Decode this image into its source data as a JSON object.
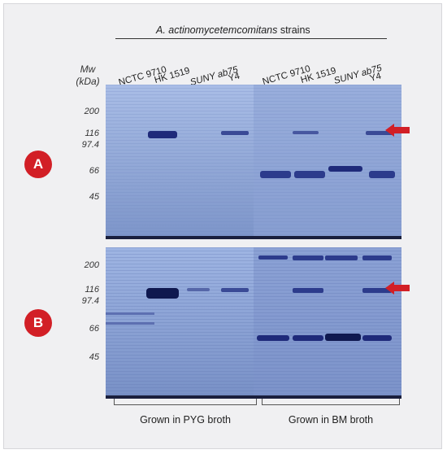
{
  "figure": {
    "header_italic": "A. actinomycetemcomitans",
    "header_rest": " strains",
    "mw_label_line1": "Mw",
    "mw_label_line2": "(kDa)",
    "lanes": [
      {
        "label": "NCTC 9710",
        "italic": false
      },
      {
        "label": "HK 1519",
        "italic": false
      },
      {
        "label": "SUNY ab75",
        "italic": true
      },
      {
        "label": "Y4",
        "italic": false
      },
      {
        "label": "NCTC 9710",
        "italic": false
      },
      {
        "label": "HK 1519",
        "italic": false
      },
      {
        "label": "SUNY ab75",
        "italic": true
      },
      {
        "label": "Y4",
        "italic": false
      }
    ],
    "panel_a": {
      "badge": "A",
      "mw_ticks": [
        "200",
        "116",
        "97.4",
        "66",
        "45"
      ]
    },
    "panel_b": {
      "badge": "B",
      "mw_ticks": [
        "200",
        "116",
        "97.4",
        "66",
        "45"
      ]
    },
    "groups": {
      "pyg": "Grown in PYG broth",
      "bm": "Grown in BM broth"
    },
    "colors": {
      "gel_background": "#8ea5d3",
      "band": "#1f2a7a",
      "badge": "#d21f26",
      "arrow": "#d21f26"
    },
    "icons": [
      "red-arrow-icon"
    ]
  }
}
